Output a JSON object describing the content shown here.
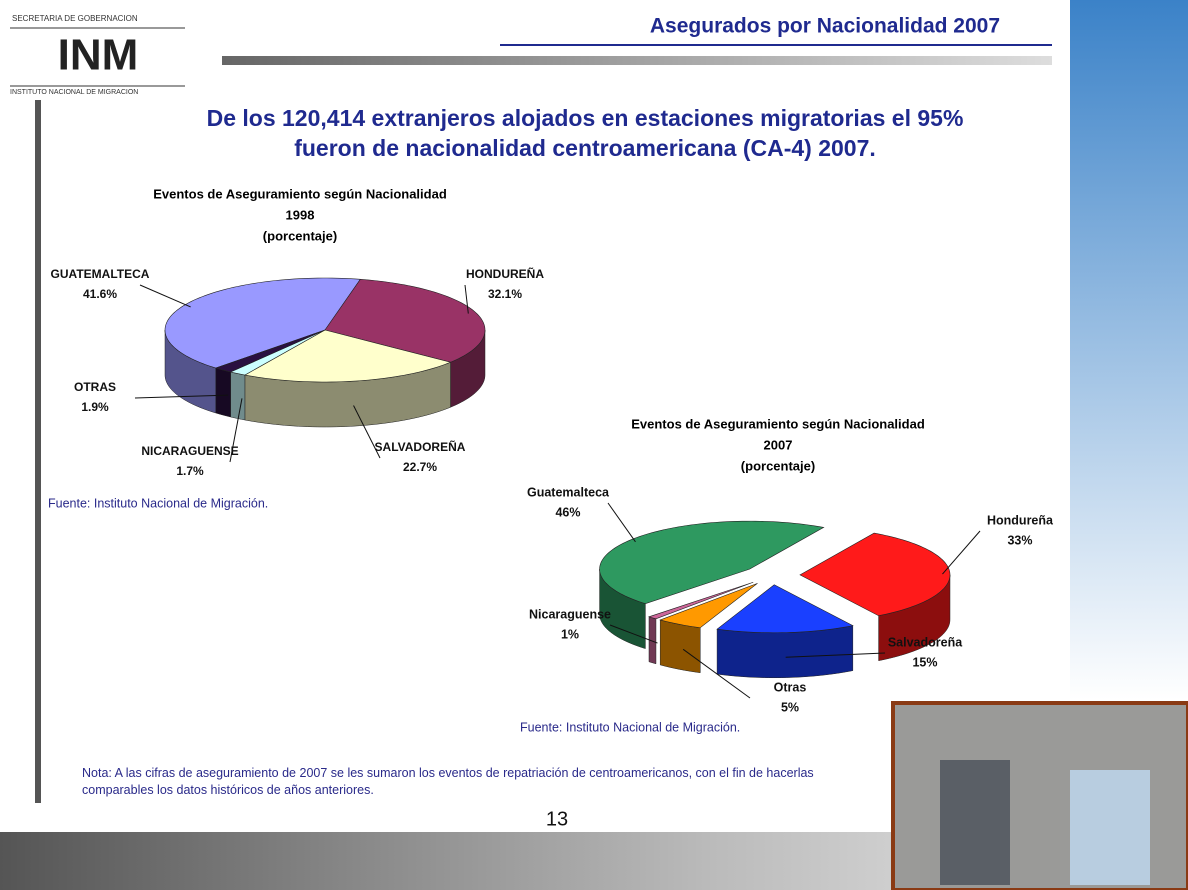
{
  "header": {
    "logo_top": "SECRETARIA DE GOBERNACION",
    "logo_mark": "INM",
    "logo_bottom": "INSTITUTO NACIONAL DE MIGRACION",
    "title": "Asegurados por Nacionalidad 2007"
  },
  "headline": "De los 120,414 extranjeros alojados en estaciones migratorias el 95% fueron de nacionalidad centroamericana (CA-4) 2007.",
  "chart_data": [
    {
      "type": "pie",
      "title": "Eventos de Aseguramiento según Nacionalidad",
      "subtitle": "1998",
      "unit_label": "(porcentaje)",
      "categories": [
        "GUATEMALTECA",
        "HONDUREÑA",
        "SALVADOREÑA",
        "NICARAGUENSE",
        "OTRAS"
      ],
      "values": [
        41.6,
        32.1,
        22.7,
        1.7,
        1.9
      ],
      "value_labels": [
        "41.6%",
        "32.1%",
        "22.7%",
        "1.7%",
        "1.9%"
      ],
      "colors": [
        "#9999ff",
        "#993366",
        "#ffffcc",
        "#ccffff",
        "#2a1040"
      ],
      "source": "Fuente: Instituto Nacional de Migración."
    },
    {
      "type": "pie",
      "title": "Eventos de Aseguramiento según Nacionalidad",
      "subtitle": "2007",
      "unit_label": "(porcentaje)",
      "categories": [
        "Guatemalteca",
        "Hondureña",
        "Salvadoreña",
        "Otras",
        "Nicaraguense"
      ],
      "values": [
        46,
        33,
        15,
        5,
        1
      ],
      "value_labels": [
        "46%",
        "33%",
        "15%",
        "5%",
        "1%"
      ],
      "colors": [
        "#2e9960",
        "#ff1a1a",
        "#1a40ff",
        "#ff9900",
        "#cc6699"
      ],
      "source": "Fuente: Instituto Nacional de Migración."
    }
  ],
  "note": "Nota: A las cifras de aseguramiento de 2007 se les sumaron los eventos de repatriación de centroamericanos, con el fin de hacerlas comparables los datos históricos de años anteriores.",
  "page_number": "13"
}
